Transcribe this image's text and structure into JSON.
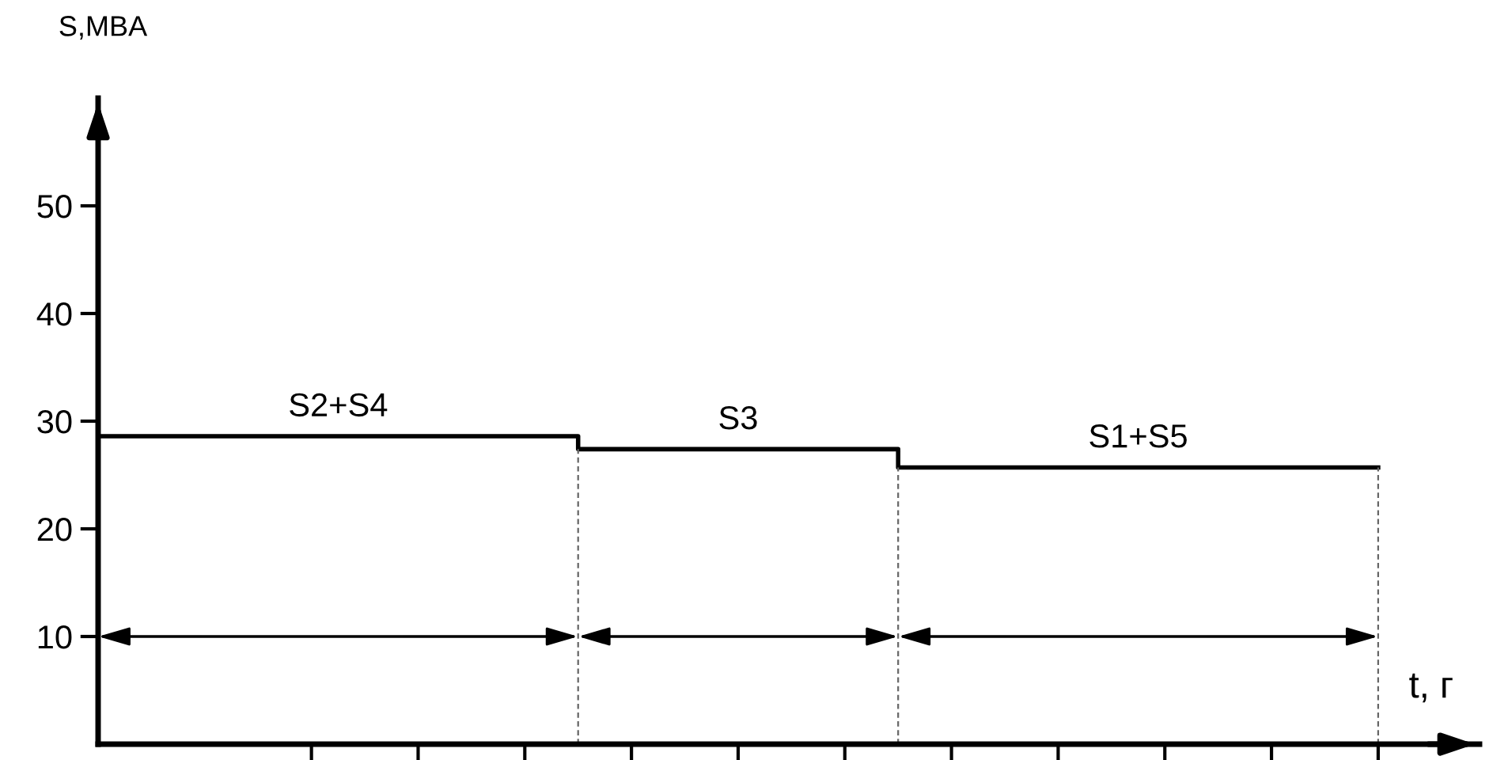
{
  "chart_data": {
    "type": "step",
    "xlabel": "t, г",
    "ylabel": "S,MBA",
    "categories": [
      null,
      null,
      null,
      null,
      null,
      null,
      null,
      null,
      null,
      null,
      null,
      null,
      null,
      null,
      null,
      null,
      null,
      null,
      null,
      null,
      null,
      null,
      null,
      null,
      null
    ],
    "ylim": [
      0,
      60
    ],
    "yticks": [
      10,
      20,
      30,
      40,
      50
    ],
    "series": [
      {
        "color": "#000000",
        "values": [
          28.6,
          28.6,
          28.6,
          28.6,
          28.6,
          28.6,
          28.6,
          28.6,
          28.6,
          27.4,
          27.4,
          27.4,
          27.4,
          27.4,
          27.4,
          25.7,
          25.7,
          25.7,
          25.7,
          25.7,
          25.7,
          25.7,
          25.7,
          25.7,
          25.7
        ]
      }
    ],
    "annotations": [
      "S2+S4",
      "S3",
      "S1+S5"
    ],
    "tick_labels": "y"
  }
}
